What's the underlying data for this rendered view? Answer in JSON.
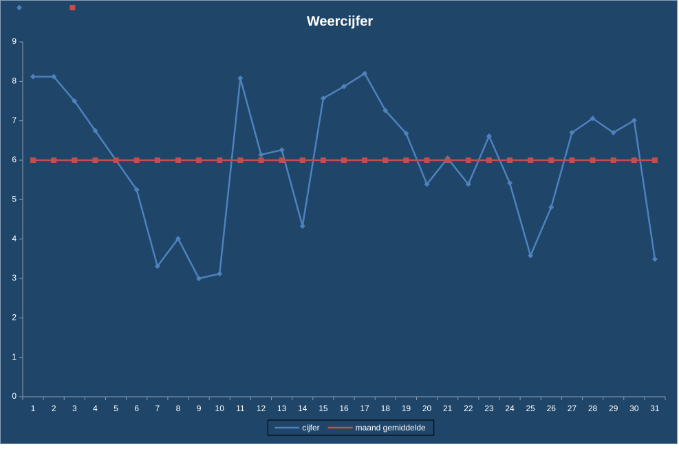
{
  "chart_data": {
    "type": "line",
    "title": "Weercijfer",
    "categories": [
      "1",
      "2",
      "3",
      "4",
      "5",
      "6",
      "7",
      "8",
      "9",
      "10",
      "11",
      "12",
      "13",
      "14",
      "15",
      "16",
      "17",
      "18",
      "19",
      "20",
      "21",
      "22",
      "23",
      "24",
      "25",
      "26",
      "27",
      "28",
      "29",
      "30",
      "31"
    ],
    "series": [
      {
        "name": "cijfer",
        "color": "#4f81bd",
        "marker": "diamond",
        "values": [
          8.12,
          8.12,
          7.5,
          6.75,
          6.0,
          5.25,
          3.31,
          4.01,
          3.0,
          3.12,
          8.08,
          6.14,
          6.26,
          4.33,
          7.57,
          7.87,
          8.2,
          7.26,
          6.68,
          5.39,
          6.05,
          5.39,
          6.61,
          5.42,
          3.58,
          4.81,
          6.7,
          7.06,
          6.7,
          7.01,
          3.49
        ]
      },
      {
        "name": "maand gemiddelde",
        "color": "#c0504d",
        "marker": "square",
        "values": [
          6,
          6,
          6,
          6,
          6,
          6,
          6,
          6,
          6,
          6,
          6,
          6,
          6,
          6,
          6,
          6,
          6,
          6,
          6,
          6,
          6,
          6,
          6,
          6,
          6,
          6,
          6,
          6,
          6,
          6,
          6
        ]
      }
    ],
    "ylim": [
      0,
      9
    ],
    "yticks": [
      0,
      1,
      2,
      3,
      4,
      5,
      6,
      7,
      8,
      9
    ],
    "grid": false,
    "legend": "bottom"
  }
}
